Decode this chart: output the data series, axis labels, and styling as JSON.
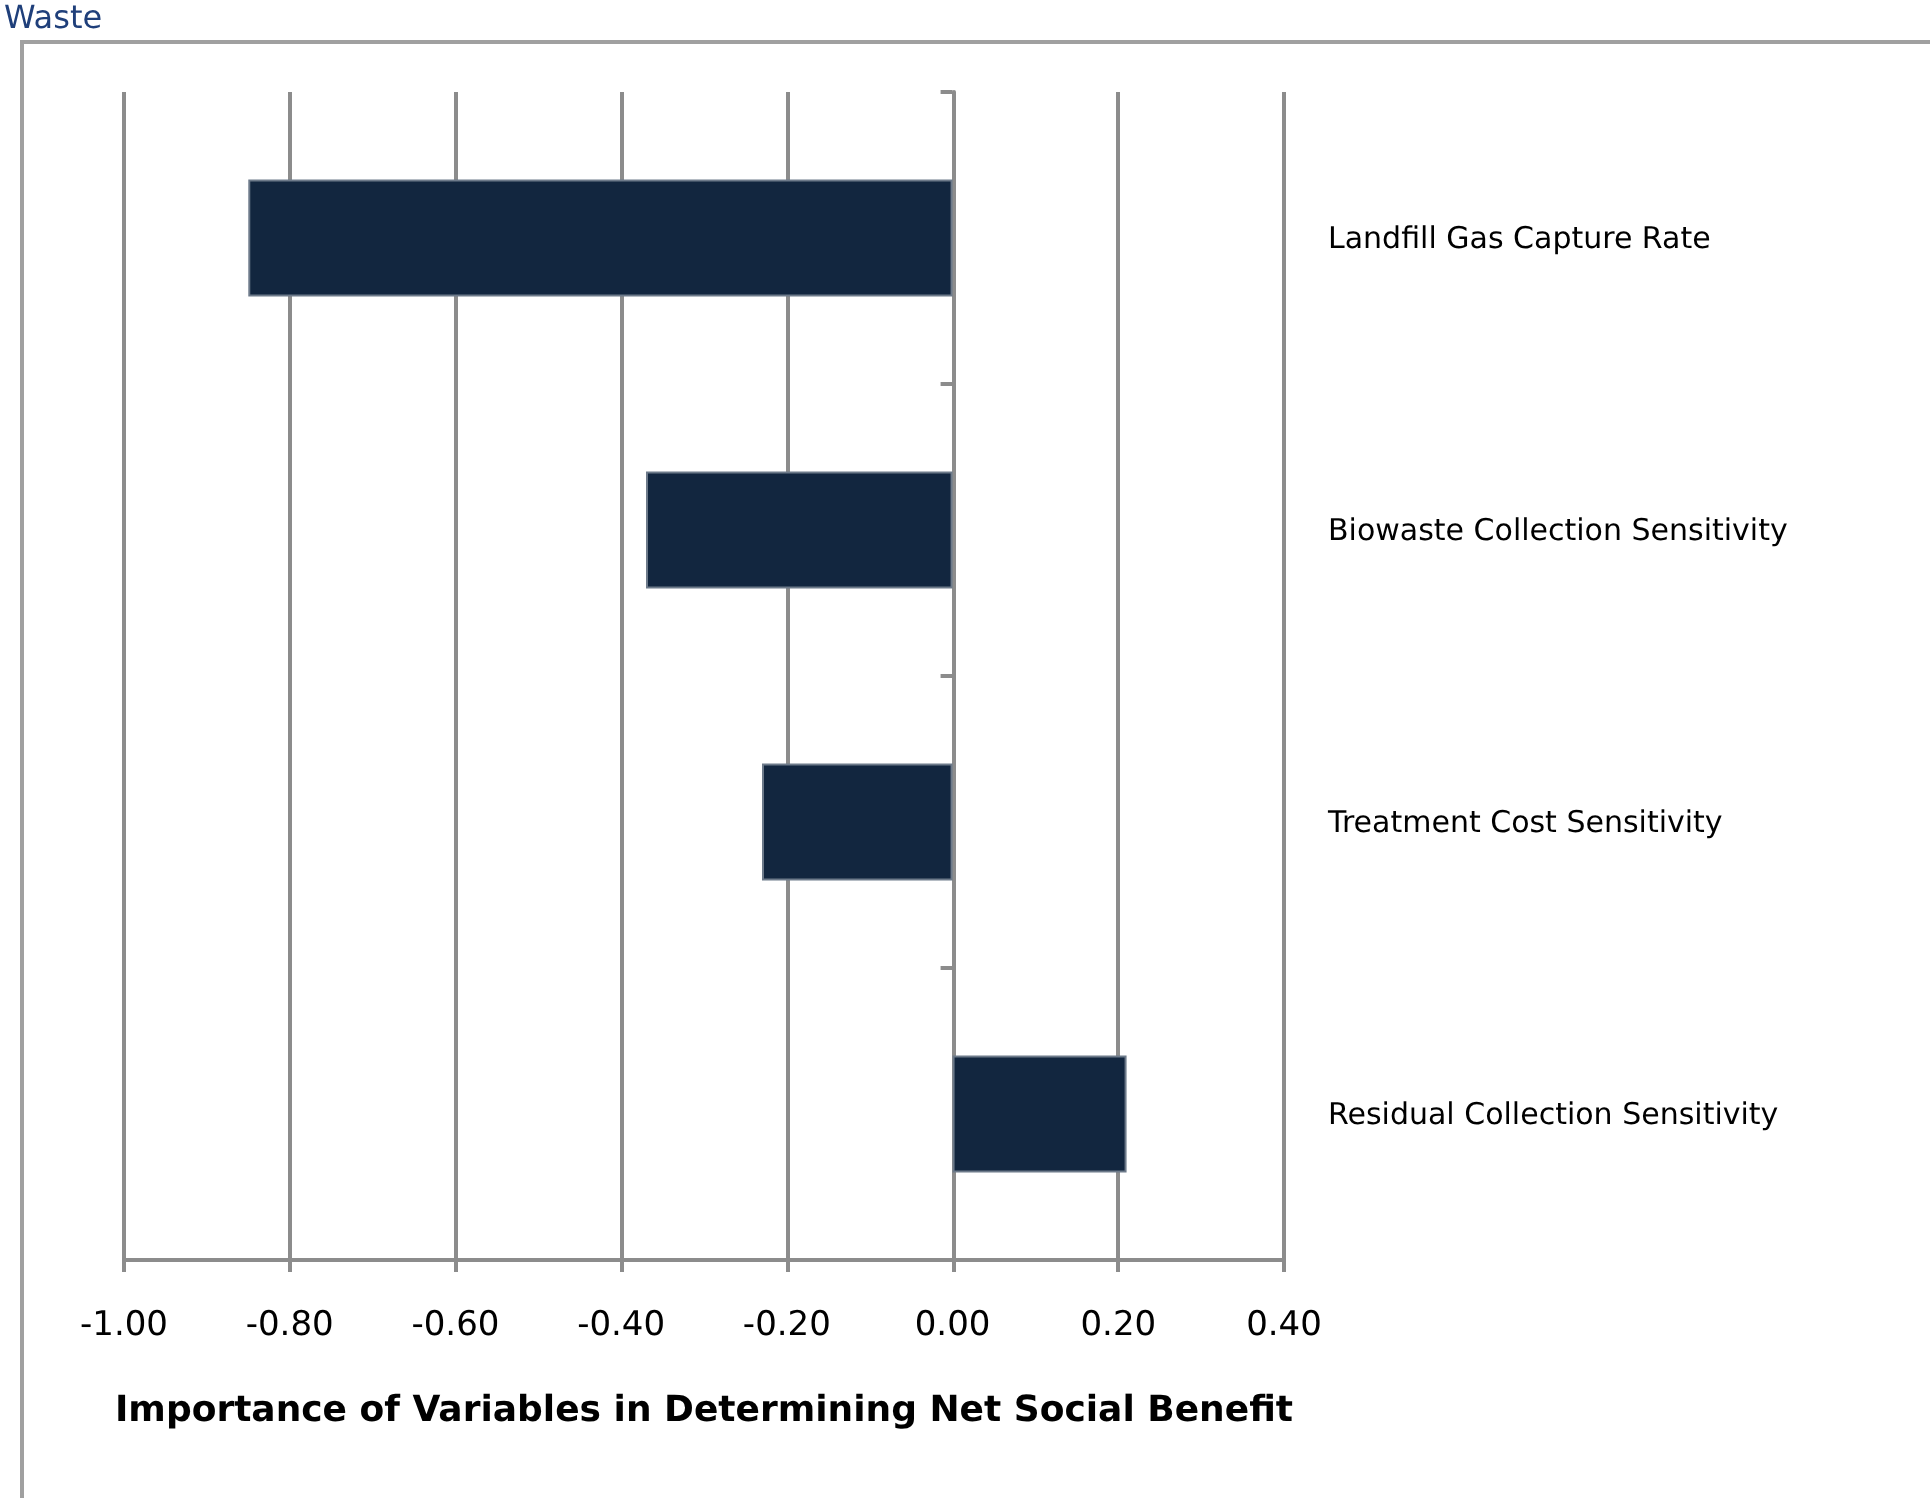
{
  "chart_data": {
    "type": "bar",
    "orientation": "horizontal",
    "title": "Waste",
    "xlabel": "Importance of Variables in Determining Net Social Benefit",
    "categories": [
      "Landfill Gas Capture Rate",
      "Biowaste Collection Sensitivity",
      "Treatment Cost Sensitivity",
      "Residual Collection Sensitivity"
    ],
    "values": [
      -0.85,
      -0.37,
      -0.23,
      0.21
    ],
    "color": "#12263f",
    "xlim": [
      -1.0,
      0.4
    ],
    "xticks": [
      {
        "value": -1.0,
        "label": "-1.00"
      },
      {
        "value": -0.8,
        "label": "-0.80"
      },
      {
        "value": -0.6,
        "label": "-0.60"
      },
      {
        "value": -0.4,
        "label": "-0.40"
      },
      {
        "value": -0.2,
        "label": "-0.20"
      },
      {
        "value": 0,
        "label": "0.00"
      },
      {
        "value": 0.2,
        "label": "0.20"
      },
      {
        "value": 0.4,
        "label": "0.40"
      }
    ],
    "grid": "x"
  }
}
